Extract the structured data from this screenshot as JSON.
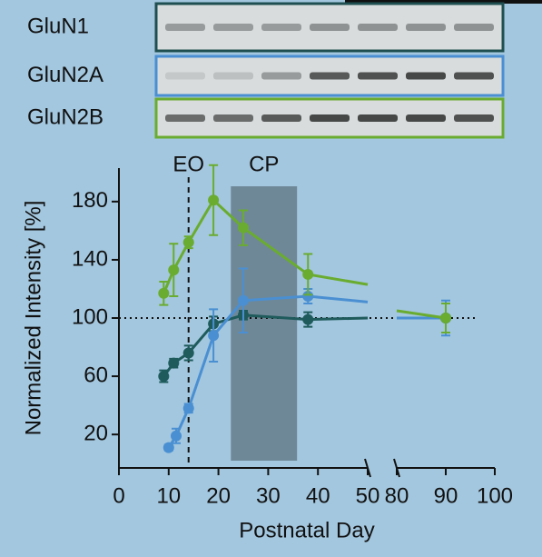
{
  "blots": {
    "rows": [
      "GluN1",
      "GluN2A",
      "GluN2B"
    ]
  },
  "chart_data": {
    "type": "line",
    "xlabel": "Postnatal Day",
    "ylabel": "Normalized Intensity [%]",
    "xlim": [
      0,
      100
    ],
    "xbreak": [
      50,
      80
    ],
    "xticks": [
      0,
      10,
      20,
      30,
      40,
      50,
      80,
      90,
      100
    ],
    "ylim": [
      -3,
      203
    ],
    "yticks": [
      20,
      60,
      100,
      140,
      180
    ],
    "reference_line": 100,
    "annotations": [
      {
        "text": "EO",
        "x": 14
      },
      {
        "text": "CP",
        "x": [
          22.5,
          35.8
        ]
      }
    ],
    "series": [
      {
        "name": "GluN1",
        "color": "#1f5b5c",
        "x": [
          9,
          11,
          14,
          19,
          25,
          38,
          50,
          80,
          90
        ],
        "values": [
          60,
          69,
          76,
          96,
          102,
          99,
          100,
          100,
          100
        ],
        "errors": [
          4,
          3,
          5,
          5,
          3,
          5,
          null,
          null,
          10
        ]
      },
      {
        "name": "GluN2A",
        "color": "#4a8fd2",
        "x": [
          10,
          11.5,
          14,
          19,
          25,
          38,
          50,
          80,
          90
        ],
        "values": [
          11,
          19,
          38,
          88,
          112,
          115,
          111,
          100,
          100
        ],
        "errors": [
          2,
          5,
          3,
          18,
          22,
          5,
          null,
          null,
          12
        ]
      },
      {
        "name": "GluN2B",
        "color": "#6aac2f",
        "x": [
          9,
          11,
          14,
          19,
          25,
          38,
          50,
          80,
          90
        ],
        "values": [
          117,
          133,
          152,
          181,
          162,
          130,
          123,
          105,
          100
        ],
        "errors": [
          8,
          18,
          4,
          24,
          12,
          14,
          null,
          null,
          10
        ]
      }
    ]
  }
}
